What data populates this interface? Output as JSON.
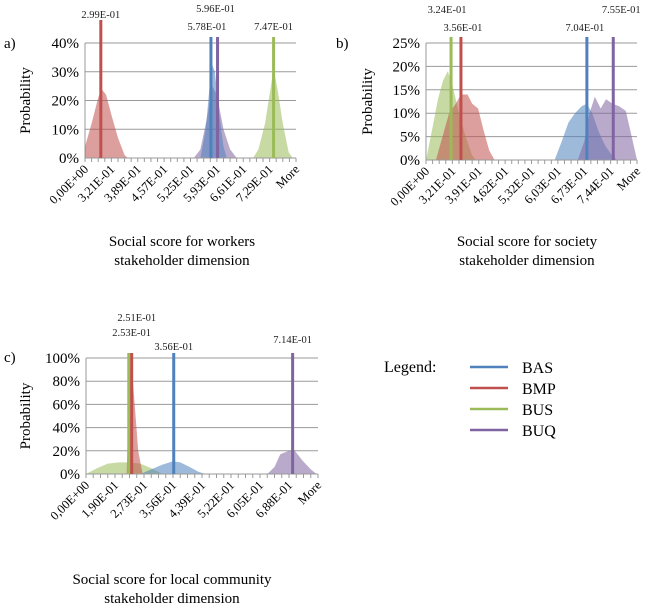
{
  "legend": {
    "title": "Legend:",
    "items": [
      {
        "name": "BAS",
        "color": "#4f81bd"
      },
      {
        "name": "BMP",
        "color": "#c0504d"
      },
      {
        "name": "BUS",
        "color": "#9bbb59"
      },
      {
        "name": "BUQ",
        "color": "#8064a2"
      }
    ]
  },
  "chart_data": [
    {
      "type": "area",
      "panel": "a)",
      "title": "",
      "xlabel": "Social score for workers stakeholder dimension",
      "xlabel_lines": [
        "Social score for workers",
        "stakeholder dimension"
      ],
      "ylabel": "Probability",
      "ylim": [
        0,
        0.4
      ],
      "yticks": [
        0,
        0.1,
        0.2,
        0.3,
        0.4
      ],
      "ytick_labels": [
        "0%",
        "10%",
        "20%",
        "30%",
        "40%"
      ],
      "bins": 32,
      "xtick_labels": [
        "0,00E+00",
        "3,21E-01",
        "3,89E-01",
        "4,57E-01",
        "5,25E-01",
        "5,93E-01",
        "6,61E-01",
        "7,29E-01",
        "More"
      ],
      "grid": true,
      "series": [
        {
          "name": "BMP",
          "color": "#c0504d",
          "points": [
            [
              0,
              0.04
            ],
            [
              1,
              0.12
            ],
            [
              2,
              0.21
            ],
            [
              2.5,
              0.24
            ],
            [
              3.2,
              0.22
            ],
            [
              4,
              0.15
            ],
            [
              5,
              0.07
            ],
            [
              6,
              0.01
            ],
            [
              6.5,
              0
            ]
          ],
          "mean_bin": 2.4,
          "mean_label": "2.99E-01"
        },
        {
          "name": "BUQ",
          "color": "#8064a2",
          "points": [
            [
              16.5,
              0
            ],
            [
              17.5,
              0.03
            ],
            [
              18.5,
              0.14
            ],
            [
              19.3,
              0.25
            ],
            [
              20,
              0.22
            ],
            [
              21,
              0.1
            ],
            [
              22,
              0.03
            ],
            [
              23,
              0
            ]
          ],
          "mean_bin": 20.1,
          "mean_label": "5.96E-01"
        },
        {
          "name": "BAS",
          "color": "#4f81bd",
          "points": [
            [
              17.5,
              0
            ],
            [
              18.3,
              0.1
            ],
            [
              18.9,
              0.25
            ],
            [
              19.2,
              0.33
            ],
            [
              19.7,
              0.3
            ],
            [
              20.3,
              0.16
            ],
            [
              21,
              0.04
            ],
            [
              21.5,
              0
            ]
          ],
          "mean_bin": 19.1,
          "mean_label": "5.78E-01"
        },
        {
          "name": "BUS",
          "color": "#9bbb59",
          "points": [
            [
              25.5,
              0
            ],
            [
              26.3,
              0.03
            ],
            [
              27.3,
              0.12
            ],
            [
              28.2,
              0.25
            ],
            [
              28.6,
              0.31
            ],
            [
              29.2,
              0.24
            ],
            [
              30,
              0.12
            ],
            [
              30.9,
              0.02
            ],
            [
              31.5,
              0
            ]
          ],
          "mean_bin": 28.6,
          "mean_label": "7.47E-01"
        }
      ]
    },
    {
      "type": "area",
      "panel": "b)",
      "title": "",
      "xlabel": "Social score for society stakeholder dimension",
      "xlabel_lines": [
        "Social score for society",
        "stakeholder dimension"
      ],
      "ylabel": "Probability",
      "ylim": [
        0,
        0.25
      ],
      "yticks": [
        0,
        0.05,
        0.1,
        0.15,
        0.2,
        0.25
      ],
      "ytick_labels": [
        "0%",
        "5%",
        "10%",
        "15%",
        "20%",
        "25%"
      ],
      "bins": 32,
      "xtick_labels": [
        "0,00E+00",
        "3,21E-01",
        "3,91E-01",
        "4,62E-01",
        "5,32E-01",
        "6,03E-01",
        "6,73E-01",
        "7,44E-01",
        "More"
      ],
      "grid": true,
      "series": [
        {
          "name": "BUS",
          "color": "#9bbb59",
          "points": [
            [
              0,
              0
            ],
            [
              1,
              0.07
            ],
            [
              1.8,
              0.13
            ],
            [
              2.6,
              0.17
            ],
            [
              3.3,
              0.19
            ],
            [
              4,
              0.16
            ],
            [
              5,
              0.1
            ],
            [
              6,
              0.05
            ],
            [
              7,
              0.01
            ],
            [
              7.5,
              0
            ]
          ],
          "mean_bin": 3.8,
          "mean_label": "3.24E-01"
        },
        {
          "name": "BMP",
          "color": "#c0504d",
          "points": [
            [
              1.5,
              0
            ],
            [
              2.5,
              0.05
            ],
            [
              3.5,
              0.1
            ],
            [
              4.5,
              0.12
            ],
            [
              5.3,
              0.14
            ],
            [
              6.3,
              0.14
            ],
            [
              7,
              0.12
            ],
            [
              7.9,
              0.11
            ],
            [
              8.8,
              0.06
            ],
            [
              9.6,
              0.02
            ],
            [
              10.4,
              0
            ]
          ],
          "mean_bin": 5.3,
          "mean_label": "3.56E-01"
        },
        {
          "name": "BAS",
          "color": "#4f81bd",
          "points": [
            [
              19.5,
              0
            ],
            [
              20.6,
              0.04
            ],
            [
              21.6,
              0.08
            ],
            [
              22.6,
              0.1
            ],
            [
              23.6,
              0.115
            ],
            [
              24.4,
              0.12
            ],
            [
              25.2,
              0.1
            ],
            [
              26.2,
              0.06
            ],
            [
              27.2,
              0.03
            ],
            [
              28.2,
              0.01
            ],
            [
              29,
              0
            ]
          ],
          "mean_bin": 24.4,
          "mean_label": "7.04E-01"
        },
        {
          "name": "BUQ",
          "color": "#8064a2",
          "points": [
            [
              23,
              0
            ],
            [
              24,
              0.04
            ],
            [
              24.8,
              0.1
            ],
            [
              25.6,
              0.135
            ],
            [
              26.5,
              0.11
            ],
            [
              27.3,
              0.13
            ],
            [
              28.3,
              0.12
            ],
            [
              29.3,
              0.115
            ],
            [
              30.3,
              0.105
            ],
            [
              31.2,
              0.05
            ],
            [
              32,
              0
            ]
          ],
          "mean_bin": 28.4,
          "mean_label": "7.55E-01"
        }
      ]
    },
    {
      "type": "area",
      "panel": "c)",
      "title": "",
      "xlabel": "Social score for local community stakeholder dimension",
      "xlabel_lines": [
        "Social score for local community",
        "stakeholder dimension"
      ],
      "ylabel": "Probability",
      "ylim": [
        0,
        1.0
      ],
      "yticks": [
        0,
        0.2,
        0.4,
        0.6,
        0.8,
        1.0
      ],
      "ytick_labels": [
        "0%",
        "20%",
        "40%",
        "60%",
        "80%",
        "100%"
      ],
      "bins": 32,
      "xtick_labels": [
        "0,00E+00",
        "1,90E-01",
        "2,73E-01",
        "3,56E-01",
        "4,39E-01",
        "5,22E-01",
        "6,05E-01",
        "6,88E-01",
        "More"
      ],
      "grid": true,
      "series": [
        {
          "name": "BUS",
          "color": "#9bbb59",
          "points": [
            [
              0,
              0
            ],
            [
              1.5,
              0.05
            ],
            [
              3,
              0.09
            ],
            [
              4.5,
              0.1
            ],
            [
              6,
              0.1
            ],
            [
              7.5,
              0.09
            ],
            [
              9,
              0.05
            ],
            [
              10,
              0.02
            ],
            [
              10.5,
              0
            ]
          ],
          "mean_bin": 5.9,
          "mean_label": "2.51E-01"
        },
        {
          "name": "BMP",
          "color": "#c0504d",
          "points": [
            [
              5.6,
              0
            ],
            [
              5.9,
              0.6
            ],
            [
              6.2,
              1.02
            ],
            [
              6.6,
              0.7
            ],
            [
              7.2,
              0.2
            ],
            [
              7.8,
              0
            ]
          ],
          "mean_bin": 6.3,
          "mean_label": "2.53E-01"
        },
        {
          "name": "BAS",
          "color": "#4f81bd",
          "points": [
            [
              7.5,
              0
            ],
            [
              9,
              0.04
            ],
            [
              10.5,
              0.08
            ],
            [
              12,
              0.11
            ],
            [
              13,
              0.1
            ],
            [
              14.3,
              0.06
            ],
            [
              15.5,
              0.02
            ],
            [
              16.5,
              0
            ]
          ],
          "mean_bin": 12.1,
          "mean_label": "3.56E-01"
        },
        {
          "name": "BUQ",
          "color": "#8064a2",
          "points": [
            [
              25,
              0
            ],
            [
              26,
              0.06
            ],
            [
              26.8,
              0.17
            ],
            [
              28,
              0.2
            ],
            [
              28.8,
              0.2
            ],
            [
              29.8,
              0.12
            ],
            [
              31,
              0.04
            ],
            [
              31.8,
              0
            ]
          ],
          "mean_bin": 28.5,
          "mean_label": "7.14E-01"
        }
      ]
    }
  ]
}
